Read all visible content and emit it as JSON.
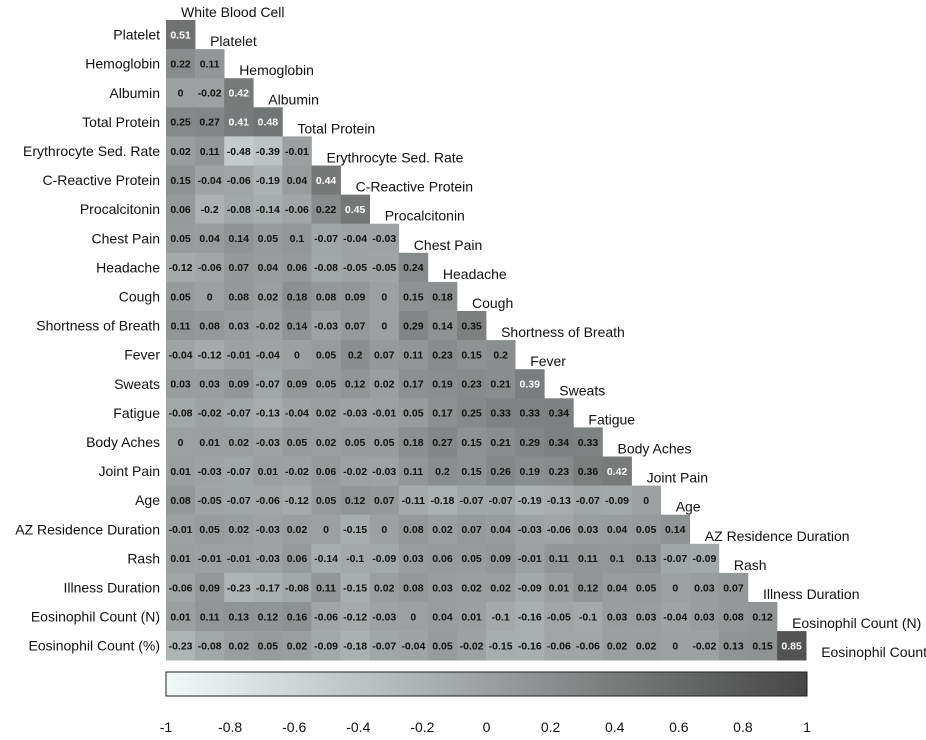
{
  "chart_data": {
    "type": "heatmap",
    "layout": "lower-triangle correlation matrix",
    "variables": [
      "White Blood Cell",
      "Platelet",
      "Hemoglobin",
      "Albumin",
      "Total Protein",
      "Erythrocyte Sed. Rate",
      "C-Reactive Protein",
      "Procalcitonin",
      "Chest Pain",
      "Headache",
      "Cough",
      "Shortness of Breath",
      "Fever",
      "Sweats",
      "Fatigue",
      "Body Aches",
      "Joint Pain",
      "Age",
      "AZ Residence Duration",
      "Rash",
      "Illness Duration",
      "Eosinophil Count (N)",
      "Eosinophil Count (%)"
    ],
    "rows": [
      {
        "label": "Platelet",
        "values": [
          0.51
        ]
      },
      {
        "label": "Hemoglobin",
        "values": [
          0.22,
          0.11
        ]
      },
      {
        "label": "Albumin",
        "values": [
          0,
          -0.02,
          0.42
        ]
      },
      {
        "label": "Total Protein",
        "values": [
          0.25,
          0.27,
          0.41,
          0.48
        ]
      },
      {
        "label": "Erythrocyte Sed. Rate",
        "values": [
          0.02,
          0.11,
          -0.48,
          -0.39,
          -0.01
        ]
      },
      {
        "label": "C-Reactive Protein",
        "values": [
          0.15,
          -0.04,
          -0.06,
          -0.19,
          0.04,
          0.44
        ]
      },
      {
        "label": "Procalcitonin",
        "values": [
          0.06,
          -0.2,
          -0.08,
          -0.14,
          -0.06,
          0.22,
          0.45
        ]
      },
      {
        "label": "Chest Pain",
        "values": [
          0.05,
          0.04,
          0.14,
          0.05,
          0.1,
          -0.07,
          -0.04,
          -0.03
        ]
      },
      {
        "label": "Headache",
        "values": [
          -0.12,
          -0.06,
          0.07,
          0.04,
          0.06,
          -0.08,
          -0.05,
          -0.05,
          0.24
        ]
      },
      {
        "label": "Cough",
        "values": [
          0.05,
          0,
          0.08,
          0.02,
          0.18,
          0.08,
          0.09,
          0,
          0.15,
          0.18
        ]
      },
      {
        "label": "Shortness of Breath",
        "values": [
          0.11,
          0.08,
          0.03,
          -0.02,
          0.14,
          -0.03,
          0.07,
          0,
          0.29,
          0.14,
          0.35
        ]
      },
      {
        "label": "Fever",
        "values": [
          -0.04,
          -0.12,
          -0.01,
          -0.04,
          0,
          0.05,
          0.2,
          0.07,
          0.11,
          0.23,
          0.15,
          0.2
        ]
      },
      {
        "label": "Sweats",
        "values": [
          0.03,
          0.03,
          0.09,
          -0.07,
          0.09,
          0.05,
          0.12,
          0.02,
          0.17,
          0.19,
          0.23,
          0.21,
          0.39
        ]
      },
      {
        "label": "Fatigue",
        "values": [
          -0.08,
          -0.02,
          -0.07,
          -0.13,
          -0.04,
          0.02,
          -0.03,
          -0.01,
          0.05,
          0.17,
          0.25,
          0.33,
          0.33,
          0.34
        ]
      },
      {
        "label": "Body Aches",
        "values": [
          0,
          0.01,
          0.02,
          -0.03,
          0.05,
          0.02,
          0.05,
          0.05,
          0.18,
          0.27,
          0.15,
          0.21,
          0.29,
          0.34,
          0.33
        ]
      },
      {
        "label": "Joint Pain",
        "values": [
          0.01,
          -0.03,
          -0.07,
          0.01,
          -0.02,
          0.06,
          -0.02,
          -0.03,
          0.11,
          0.2,
          0.15,
          0.26,
          0.19,
          0.23,
          0.36,
          0.42
        ]
      },
      {
        "label": "Age",
        "values": [
          0.08,
          -0.05,
          -0.07,
          -0.06,
          -0.12,
          0.05,
          0.12,
          0.07,
          -0.11,
          -0.18,
          -0.07,
          -0.07,
          -0.19,
          -0.13,
          -0.07,
          -0.09,
          0
        ]
      },
      {
        "label": "AZ Residence Duration",
        "values": [
          -0.01,
          0.05,
          0.02,
          -0.03,
          0.02,
          0,
          -0.15,
          0,
          0.08,
          0.02,
          0.07,
          0.04,
          -0.03,
          -0.06,
          0.03,
          0.04,
          0.05,
          0.14
        ]
      },
      {
        "label": "Rash",
        "values": [
          0.01,
          -0.01,
          -0.01,
          -0.03,
          0.06,
          -0.14,
          -0.1,
          -0.09,
          0.03,
          0.06,
          0.05,
          0.09,
          -0.01,
          0.11,
          0.11,
          0.1,
          0.13,
          -0.07,
          -0.09
        ]
      },
      {
        "label": "Illness Duration",
        "values": [
          -0.06,
          0.09,
          -0.23,
          -0.17,
          -0.08,
          0.11,
          -0.15,
          0.02,
          0.08,
          0.03,
          0.02,
          0.02,
          -0.09,
          0.01,
          0.12,
          0.04,
          0.05,
          0,
          0.03,
          0.07
        ]
      },
      {
        "label": "Eosinophil Count (N)",
        "values": [
          0.01,
          0.11,
          0.13,
          0.12,
          0.16,
          -0.06,
          -0.12,
          -0.03,
          0,
          0.04,
          0.01,
          -0.1,
          -0.16,
          -0.05,
          -0.1,
          0.03,
          0.03,
          -0.04,
          0.03,
          0.08,
          0.12
        ]
      },
      {
        "label": "Eosinophil Count (%)",
        "values": [
          -0.23,
          -0.08,
          0.02,
          0.05,
          0.02,
          -0.09,
          -0.18,
          -0.07,
          -0.04,
          0.05,
          -0.02,
          -0.15,
          -0.16,
          -0.06,
          -0.06,
          0.02,
          0.02,
          0,
          -0.02,
          0.13,
          0.15,
          0.85
        ]
      }
    ],
    "color_scale": {
      "min": -1,
      "max": 1,
      "low_color": "#f1f9f9",
      "high_color": "#464646",
      "ticks": [
        "-1",
        "-0.8",
        "-0.6",
        "-0.4",
        "-0.2",
        "0",
        "0.2",
        "0.4",
        "0.6",
        "0.8",
        "1"
      ]
    },
    "grid": false,
    "legend": "bottom"
  }
}
